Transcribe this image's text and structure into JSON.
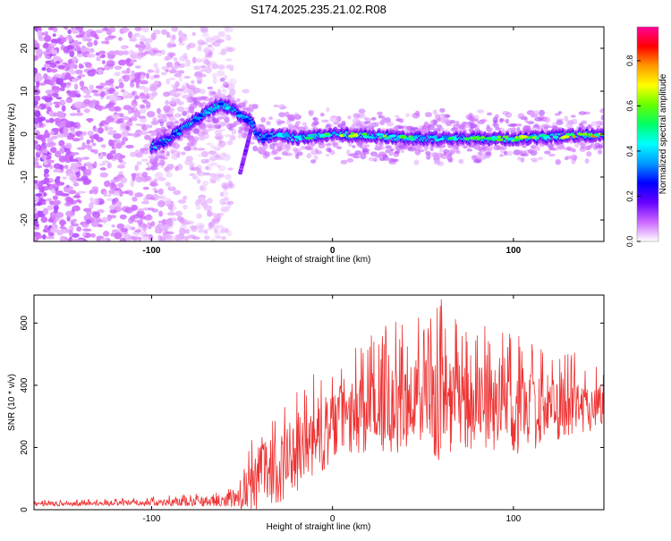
{
  "title": "S174.2025.235.21.02.R08",
  "colors": {
    "snr_line": "#ee3333",
    "axis": "#000000",
    "colorbar": [
      "#ffffff",
      "#cc66ff",
      "#6600ff",
      "#0000ff",
      "#0099ff",
      "#00ffff",
      "#00ff66",
      "#66ff00",
      "#ffff00",
      "#ff9900",
      "#ff0000",
      "#ff0099"
    ]
  },
  "chart_data": [
    {
      "type": "heatmap",
      "title": "S174.2025.235.21.02.R08",
      "xlabel": "Height of straight line (km)",
      "ylabel": "Frequency (Hz)",
      "xlim": [
        -165,
        150
      ],
      "ylim": [
        -25,
        25
      ],
      "x_ticks": [
        -100,
        0,
        100
      ],
      "y_ticks": [
        -20,
        -10,
        0,
        10,
        20
      ],
      "grid": false,
      "colorbar": {
        "label": "Normalized spectral amplitude",
        "range": [
          0,
          0.95
        ],
        "ticks": [
          0.0,
          0.2,
          0.4,
          0.6,
          0.8
        ]
      },
      "signal_track": {
        "x": [
          -100,
          -90,
          -80,
          -70,
          -62,
          -55,
          -50,
          -45,
          -42,
          -38,
          -30,
          -20,
          0,
          50,
          100,
          150
        ],
        "freq": [
          -3,
          -1,
          2,
          5,
          7,
          6,
          4,
          3,
          0,
          -1,
          0,
          -1,
          0,
          -1,
          -1,
          0
        ],
        "peak_amplitude": [
          0.35,
          0.4,
          0.45,
          0.5,
          0.45,
          0.5,
          0.45,
          0.4,
          0.4,
          0.45,
          0.5,
          0.55,
          0.75,
          0.6,
          0.7,
          0.9
        ]
      },
      "noise_region": {
        "x_from": -165,
        "x_to": -60,
        "amplitude": "low (0.0–0.1)"
      }
    },
    {
      "type": "line",
      "xlabel": "Height of straight line (km)",
      "ylabel": "SNR (10 * v/v)",
      "xlim": [
        -165,
        150
      ],
      "ylim": [
        0,
        690
      ],
      "x_ticks": [
        -100,
        0,
        100
      ],
      "y_ticks": [
        0,
        200,
        400,
        600
      ],
      "grid": false,
      "envelope": {
        "x": [
          -165,
          -120,
          -80,
          -60,
          -50,
          -45,
          -40,
          -30,
          -20,
          -10,
          0,
          10,
          20,
          30,
          40,
          50,
          60,
          70,
          80,
          90,
          100,
          110,
          120,
          130,
          140,
          150
        ],
        "mean": [
          18,
          20,
          25,
          28,
          40,
          80,
          110,
          130,
          170,
          230,
          270,
          290,
          310,
          330,
          340,
          350,
          340,
          340,
          330,
          330,
          320,
          320,
          330,
          320,
          330,
          340
        ],
        "peak": [
          30,
          35,
          50,
          60,
          120,
          260,
          300,
          330,
          380,
          450,
          500,
          510,
          560,
          600,
          630,
          620,
          690,
          600,
          590,
          590,
          580,
          560,
          520,
          520,
          480,
          470
        ]
      }
    }
  ]
}
